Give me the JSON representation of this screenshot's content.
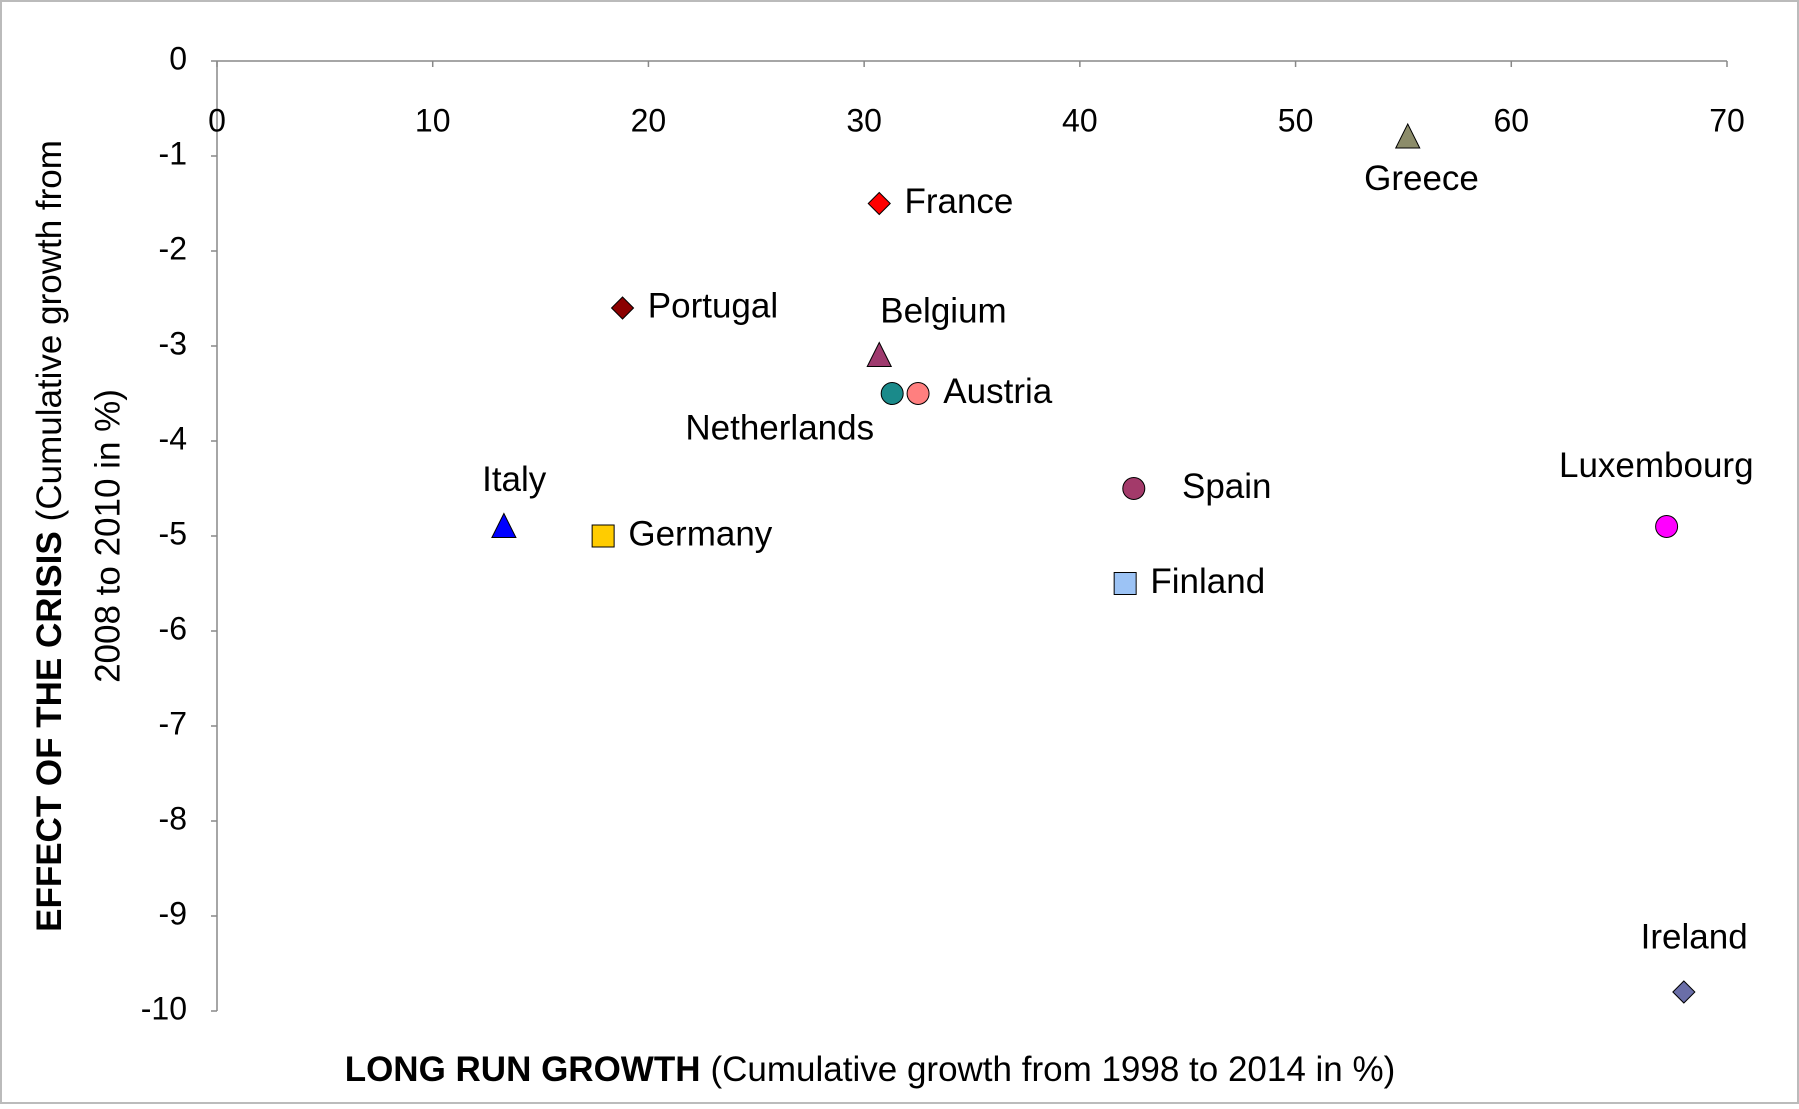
{
  "chart_data": {
    "type": "scatter",
    "x_label_bold": "LONG RUN GROWTH",
    "x_label": "(Cumulative growth from 1998 to 2014 in %)",
    "y_label_bold": "EFFECT OF THE CRISIS",
    "y_label_line1": "(Cumulative growth from",
    "y_label_line2": "2008 to 2010 in %)",
    "xlim": [
      0,
      70
    ],
    "ylim": [
      -10,
      0
    ],
    "xticks": [
      0,
      10,
      20,
      30,
      40,
      50,
      60,
      70
    ],
    "yticks": [
      -10,
      -9,
      -8,
      -7,
      -6,
      -5,
      -4,
      -3,
      -2,
      -1,
      0
    ],
    "x_axis_position": "top",
    "grid": false,
    "series": [
      {
        "name": "France",
        "color": "#ff0000",
        "marker": "diamond",
        "x": [
          30.7
        ],
        "values": [
          -1.5
        ]
      },
      {
        "name": "Portugal",
        "color": "#8b0000",
        "marker": "diamond",
        "x": [
          18.8
        ],
        "values": [
          -2.6
        ]
      },
      {
        "name": "Belgium",
        "color": "#9e3a6e",
        "marker": "triangle",
        "x": [
          30.7
        ],
        "values": [
          -3.1
        ]
      },
      {
        "name": "Netherlands",
        "color": "#1a8a8a",
        "marker": "circle",
        "x": [
          31.3
        ],
        "values": [
          -3.5
        ]
      },
      {
        "name": "Austria",
        "color": "#ff7f7f",
        "marker": "circle",
        "x": [
          32.5
        ],
        "values": [
          -3.5
        ]
      },
      {
        "name": "Italy",
        "color": "#0000ff",
        "marker": "triangle",
        "x": [
          13.3
        ],
        "values": [
          -4.9
        ]
      },
      {
        "name": "Germany",
        "color": "#ffcc00",
        "marker": "square",
        "x": [
          17.9
        ],
        "values": [
          -5.0
        ]
      },
      {
        "name": "Spain",
        "color": "#a33a6a",
        "marker": "circle",
        "x": [
          42.5
        ],
        "values": [
          -4.5
        ]
      },
      {
        "name": "Finland",
        "color": "#9cc3f5",
        "marker": "square",
        "x": [
          42.1
        ],
        "values": [
          -5.5
        ]
      },
      {
        "name": "Luxembourg",
        "color": "#ff00ff",
        "marker": "circle",
        "x": [
          67.2
        ],
        "values": [
          -4.9
        ]
      },
      {
        "name": "Ireland",
        "color": "#6a6ea8",
        "marker": "diamond",
        "x": [
          68.0
        ],
        "values": [
          -9.8
        ]
      },
      {
        "name": "Greece",
        "color": "#8c8c6a",
        "marker": "triangle",
        "x": [
          55.2
        ],
        "values": [
          -0.8
        ]
      }
    ]
  }
}
